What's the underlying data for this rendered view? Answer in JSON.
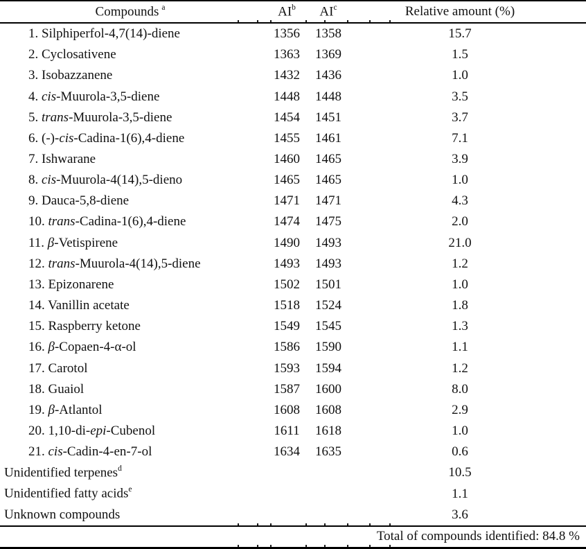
{
  "table": {
    "headers": {
      "compounds": {
        "label": "Compounds",
        "sup": "a"
      },
      "ai_b": {
        "label": "AI",
        "sup": "b"
      },
      "ai_c": {
        "label": "AI",
        "sup": "c"
      },
      "relative": {
        "label": "Relative amount (%)"
      }
    },
    "rows": [
      {
        "parts": [
          {
            "t": "1. Silphiperfol-4,7(14)-diene"
          }
        ],
        "ai_b": "1356",
        "ai_c": "1358",
        "relative": "15.7"
      },
      {
        "parts": [
          {
            "t": "2. Cyclosativene"
          }
        ],
        "ai_b": "1363",
        "ai_c": "1369",
        "relative": "1.5"
      },
      {
        "parts": [
          {
            "t": "3. Isobazzanene"
          }
        ],
        "ai_b": "1432",
        "ai_c": "1436",
        "relative": "1.0"
      },
      {
        "parts": [
          {
            "t": "4. "
          },
          {
            "t": "cis",
            "i": true
          },
          {
            "t": "-Muurola-3,5-diene"
          }
        ],
        "ai_b": "1448",
        "ai_c": "1448",
        "relative": "3.5"
      },
      {
        "parts": [
          {
            "t": "5. "
          },
          {
            "t": "trans",
            "i": true
          },
          {
            "t": "-Muurola-3,5-diene"
          }
        ],
        "ai_b": "1454",
        "ai_c": "1451",
        "relative": "3.7"
      },
      {
        "parts": [
          {
            "t": "6. (-)-"
          },
          {
            "t": "cis",
            "i": true
          },
          {
            "t": "-Cadina-1(6),4-diene"
          }
        ],
        "ai_b": "1455",
        "ai_c": "1461",
        "relative": "7.1"
      },
      {
        "parts": [
          {
            "t": "7. Ishwarane"
          }
        ],
        "ai_b": "1460",
        "ai_c": "1465",
        "relative": "3.9"
      },
      {
        "parts": [
          {
            "t": "8. "
          },
          {
            "t": "cis",
            "i": true
          },
          {
            "t": "-Muurola-4(14),5-dieno"
          }
        ],
        "ai_b": "1465",
        "ai_c": "1465",
        "relative": "1.0"
      },
      {
        "parts": [
          {
            "t": "9. Dauca-5,8-diene"
          }
        ],
        "ai_b": "1471",
        "ai_c": "1471",
        "relative": "4.3"
      },
      {
        "parts": [
          {
            "t": "10. "
          },
          {
            "t": "trans",
            "i": true
          },
          {
            "t": "-Cadina-1(6),4-diene"
          }
        ],
        "ai_b": "1474",
        "ai_c": "1475",
        "relative": "2.0"
      },
      {
        "parts": [
          {
            "t": "11. "
          },
          {
            "t": "β",
            "i": true
          },
          {
            "t": "-Vetispirene"
          }
        ],
        "ai_b": "1490",
        "ai_c": "1493",
        "relative": "21.0"
      },
      {
        "parts": [
          {
            "t": "12. "
          },
          {
            "t": "trans",
            "i": true
          },
          {
            "t": "-Muurola-4(14),5-diene"
          }
        ],
        "ai_b": "1493",
        "ai_c": "1493",
        "relative": "1.2"
      },
      {
        "parts": [
          {
            "t": "13. Epizonarene"
          }
        ],
        "ai_b": "1502",
        "ai_c": "1501",
        "relative": "1.0"
      },
      {
        "parts": [
          {
            "t": "14. Vanillin acetate"
          }
        ],
        "ai_b": "1518",
        "ai_c": "1524",
        "relative": "1.8"
      },
      {
        "parts": [
          {
            "t": "15. Raspberry ketone"
          }
        ],
        "ai_b": "1549",
        "ai_c": "1545",
        "relative": "1.3"
      },
      {
        "parts": [
          {
            "t": "16. "
          },
          {
            "t": "β",
            "i": true
          },
          {
            "t": "-Copaen-4-α-ol"
          }
        ],
        "ai_b": "1586",
        "ai_c": "1590",
        "relative": "1.1"
      },
      {
        "parts": [
          {
            "t": "17. Carotol"
          }
        ],
        "ai_b": "1593",
        "ai_c": "1594",
        "relative": "1.2"
      },
      {
        "parts": [
          {
            "t": "18. Guaiol"
          }
        ],
        "ai_b": "1587",
        "ai_c": "1600",
        "relative": "8.0"
      },
      {
        "parts": [
          {
            "t": "19. "
          },
          {
            "t": "β",
            "i": true
          },
          {
            "t": "-Atlantol"
          }
        ],
        "ai_b": "1608",
        "ai_c": "1608",
        "relative": "2.9"
      },
      {
        "parts": [
          {
            "t": "20. 1,10-di-"
          },
          {
            "t": "epi",
            "i": true
          },
          {
            "t": "-Cubenol"
          }
        ],
        "ai_b": "1611",
        "ai_c": "1618",
        "relative": "1.0"
      },
      {
        "parts": [
          {
            "t": "21. "
          },
          {
            "t": "cis",
            "i": true
          },
          {
            "t": "-Cadin-4-en-7-ol"
          }
        ],
        "ai_b": "1634",
        "ai_c": "1635",
        "relative": "0.6"
      }
    ],
    "summary_rows": [
      {
        "parts": [
          {
            "t": "Unidentified terpenes"
          }
        ],
        "sup": "d",
        "ai_b": "",
        "ai_c": "",
        "relative": "10.5"
      },
      {
        "parts": [
          {
            "t": "Unidentified fatty acids"
          }
        ],
        "sup": "e",
        "ai_b": "",
        "ai_c": "",
        "relative": "1.1"
      },
      {
        "parts": [
          {
            "t": "Unknown compounds"
          }
        ],
        "sup": "",
        "ai_b": "",
        "ai_c": "",
        "relative": "3.6"
      }
    ],
    "total_label": "Total of compounds identified: 84.8 %"
  },
  "chart_data": {
    "type": "table",
    "title": "Compounds with arithmetic indices and relative amounts",
    "columns": [
      "Compounds",
      "AI (b)",
      "AI (c)",
      "Relative amount (%)"
    ],
    "total_identified_percent": 84.8
  }
}
